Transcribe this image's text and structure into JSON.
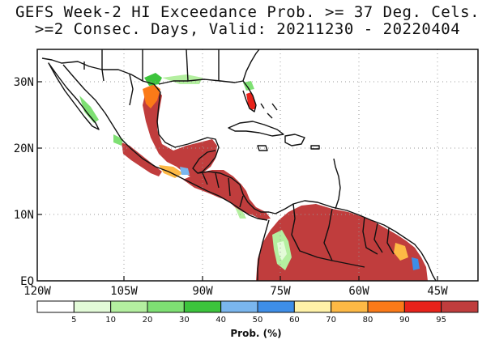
{
  "title_line1": "GEFS Week-2 HI Exceedance Prob. >= 37 Deg. Cels.",
  "title_line2": ">=2 Consec. Days, Valid: 20211230 - 20220404",
  "lat_ticks": [
    "30N",
    "20N",
    "10N",
    "EQ"
  ],
  "lon_ticks": [
    "120W",
    "105W",
    "90W",
    "75W",
    "60W",
    "45W"
  ],
  "colorbar": {
    "title": "Prob. (%)",
    "labels": [
      "5",
      "10",
      "20",
      "30",
      "40",
      "50",
      "60",
      "70",
      "80",
      "90",
      "95"
    ],
    "colors": [
      "#ffffff",
      "#e3fbd8",
      "#b4efa0",
      "#7ee073",
      "#3cc43c",
      "#7ab6ee",
      "#3e8ee8",
      "#fff2a8",
      "#fdb945",
      "#fb7a18",
      "#e8221a",
      "#c03d3d"
    ]
  },
  "colors": {
    "land": "#ffffff",
    "grid": "#999999",
    "coast": "#111111",
    "high_prob": "#c03d3d"
  }
}
